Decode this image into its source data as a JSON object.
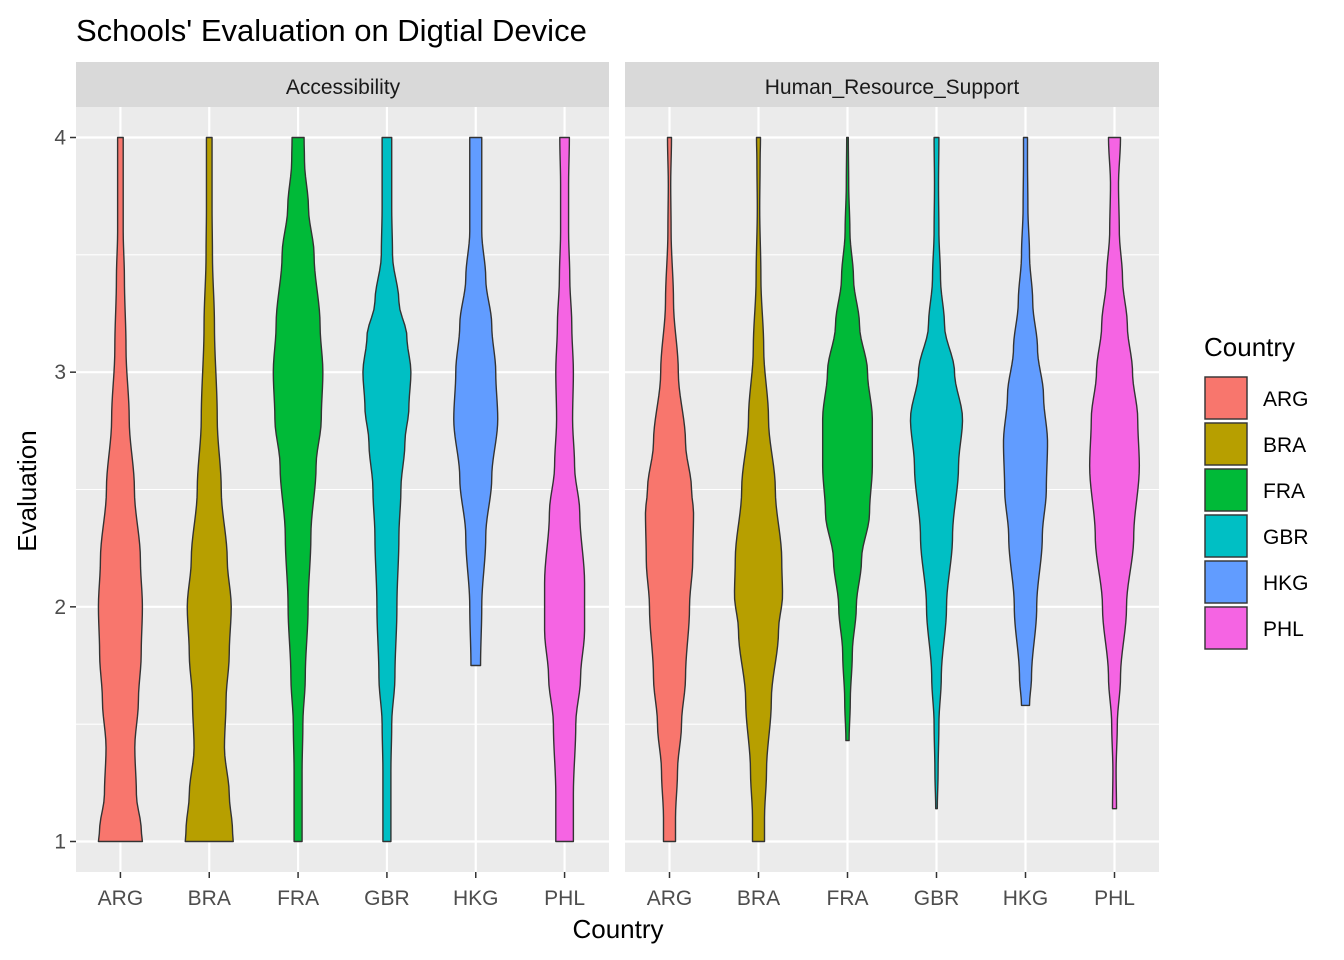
{
  "chart_data": {
    "type": "violin",
    "title": "Schools' Evaluation on Digtial Device",
    "xlabel": "Country",
    "ylabel": "Evaluation",
    "ylim": [
      0.87,
      4.13
    ],
    "y_ticks": [
      1,
      2,
      3,
      4
    ],
    "categories": [
      "ARG",
      "BRA",
      "FRA",
      "GBR",
      "HKG",
      "PHL"
    ],
    "colors": {
      "ARG": "#F8766D",
      "BRA": "#B79F00",
      "FRA": "#00BA38",
      "GBR": "#00BFC4",
      "HKG": "#619CFF",
      "PHL": "#F564E3"
    },
    "outline_color": "#333333",
    "grid": true,
    "legend": {
      "title": "Country",
      "position": "right",
      "entries": [
        "ARG",
        "BRA",
        "FRA",
        "GBR",
        "HKG",
        "PHL"
      ]
    },
    "facets": [
      {
        "label": "Accessibility",
        "series": [
          {
            "name": "ARG",
            "y_range": [
              1,
              4
            ],
            "profile": [
              [
                1.0,
                0.55
              ],
              [
                1.05,
                0.52
              ],
              [
                1.2,
                0.4
              ],
              [
                1.4,
                0.36
              ],
              [
                1.6,
                0.45
              ],
              [
                1.8,
                0.52
              ],
              [
                2.0,
                0.55
              ],
              [
                2.2,
                0.5
              ],
              [
                2.5,
                0.35
              ],
              [
                2.8,
                0.22
              ],
              [
                3.1,
                0.14
              ],
              [
                3.4,
                0.1
              ],
              [
                3.6,
                0.07
              ],
              [
                3.7,
                0.07
              ],
              [
                4.0,
                0.07
              ]
            ]
          },
          {
            "name": "BRA",
            "y_range": [
              1,
              4
            ],
            "profile": [
              [
                1.0,
                0.6
              ],
              [
                1.05,
                0.58
              ],
              [
                1.2,
                0.5
              ],
              [
                1.4,
                0.38
              ],
              [
                1.6,
                0.42
              ],
              [
                1.8,
                0.5
              ],
              [
                2.0,
                0.55
              ],
              [
                2.2,
                0.45
              ],
              [
                2.5,
                0.3
              ],
              [
                2.8,
                0.2
              ],
              [
                3.2,
                0.13
              ],
              [
                3.5,
                0.08
              ],
              [
                3.7,
                0.07
              ],
              [
                4.0,
                0.07
              ]
            ]
          },
          {
            "name": "FRA",
            "y_range": [
              1,
              4
            ],
            "profile": [
              [
                1.0,
                0.1
              ],
              [
                1.3,
                0.1
              ],
              [
                1.5,
                0.12
              ],
              [
                1.7,
                0.18
              ],
              [
                2.0,
                0.25
              ],
              [
                2.3,
                0.32
              ],
              [
                2.6,
                0.45
              ],
              [
                2.8,
                0.58
              ],
              [
                3.0,
                0.62
              ],
              [
                3.2,
                0.55
              ],
              [
                3.5,
                0.4
              ],
              [
                3.7,
                0.26
              ],
              [
                3.9,
                0.16
              ],
              [
                4.0,
                0.15
              ]
            ]
          },
          {
            "name": "GBR",
            "y_range": [
              1,
              4
            ],
            "profile": [
              [
                1.0,
                0.1
              ],
              [
                1.3,
                0.1
              ],
              [
                1.5,
                0.12
              ],
              [
                1.7,
                0.2
              ],
              [
                2.0,
                0.25
              ],
              [
                2.3,
                0.3
              ],
              [
                2.5,
                0.35
              ],
              [
                2.7,
                0.45
              ],
              [
                2.85,
                0.55
              ],
              [
                3.0,
                0.6
              ],
              [
                3.15,
                0.5
              ],
              [
                3.3,
                0.3
              ],
              [
                3.5,
                0.14
              ],
              [
                3.7,
                0.12
              ],
              [
                4.0,
                0.12
              ]
            ]
          },
          {
            "name": "HKG",
            "y_range": [
              1.75,
              4
            ],
            "profile": [
              [
                1.75,
                0.12
              ],
              [
                2.0,
                0.15
              ],
              [
                2.3,
                0.25
              ],
              [
                2.55,
                0.4
              ],
              [
                2.8,
                0.55
              ],
              [
                3.0,
                0.5
              ],
              [
                3.2,
                0.4
              ],
              [
                3.4,
                0.25
              ],
              [
                3.6,
                0.15
              ],
              [
                3.8,
                0.15
              ],
              [
                4.0,
                0.15
              ]
            ]
          },
          {
            "name": "PHL",
            "y_range": [
              1,
              4
            ],
            "profile": [
              [
                1.0,
                0.22
              ],
              [
                1.2,
                0.22
              ],
              [
                1.5,
                0.28
              ],
              [
                1.7,
                0.4
              ],
              [
                1.9,
                0.5
              ],
              [
                2.1,
                0.5
              ],
              [
                2.4,
                0.38
              ],
              [
                2.6,
                0.25
              ],
              [
                2.8,
                0.2
              ],
              [
                3.0,
                0.22
              ],
              [
                3.2,
                0.18
              ],
              [
                3.4,
                0.13
              ],
              [
                3.6,
                0.1
              ],
              [
                3.8,
                0.1
              ],
              [
                4.0,
                0.12
              ]
            ]
          }
        ]
      },
      {
        "label": "Human_Resource_Support",
        "series": [
          {
            "name": "ARG",
            "y_range": [
              1,
              4
            ],
            "profile": [
              [
                1.0,
                0.15
              ],
              [
                1.1,
                0.15
              ],
              [
                1.3,
                0.2
              ],
              [
                1.5,
                0.3
              ],
              [
                1.7,
                0.4
              ],
              [
                2.0,
                0.5
              ],
              [
                2.2,
                0.58
              ],
              [
                2.4,
                0.6
              ],
              [
                2.5,
                0.55
              ],
              [
                2.7,
                0.4
              ],
              [
                3.0,
                0.22
              ],
              [
                3.3,
                0.1
              ],
              [
                3.6,
                0.04
              ],
              [
                3.8,
                0.03
              ],
              [
                4.0,
                0.05
              ]
            ]
          },
          {
            "name": "BRA",
            "y_range": [
              1,
              4
            ],
            "profile": [
              [
                1.0,
                0.15
              ],
              [
                1.1,
                0.15
              ],
              [
                1.3,
                0.2
              ],
              [
                1.6,
                0.32
              ],
              [
                1.9,
                0.5
              ],
              [
                2.05,
                0.6
              ],
              [
                2.2,
                0.58
              ],
              [
                2.5,
                0.42
              ],
              [
                2.8,
                0.25
              ],
              [
                3.1,
                0.13
              ],
              [
                3.4,
                0.06
              ],
              [
                3.7,
                0.03
              ],
              [
                3.9,
                0.04
              ],
              [
                4.0,
                0.05
              ]
            ]
          },
          {
            "name": "FRA",
            "y_range": [
              1.43,
              4
            ],
            "profile": [
              [
                1.43,
                0.04
              ],
              [
                1.6,
                0.07
              ],
              [
                1.8,
                0.12
              ],
              [
                2.0,
                0.22
              ],
              [
                2.2,
                0.35
              ],
              [
                2.4,
                0.55
              ],
              [
                2.6,
                0.62
              ],
              [
                2.8,
                0.62
              ],
              [
                3.0,
                0.5
              ],
              [
                3.2,
                0.3
              ],
              [
                3.4,
                0.15
              ],
              [
                3.6,
                0.06
              ],
              [
                3.8,
                0.03
              ],
              [
                4.0,
                0.02
              ]
            ]
          },
          {
            "name": "GBR",
            "y_range": [
              1.14,
              4
            ],
            "profile": [
              [
                1.14,
                0.02
              ],
              [
                1.3,
                0.04
              ],
              [
                1.5,
                0.06
              ],
              [
                1.7,
                0.12
              ],
              [
                2.0,
                0.25
              ],
              [
                2.3,
                0.4
              ],
              [
                2.6,
                0.55
              ],
              [
                2.8,
                0.65
              ],
              [
                3.0,
                0.45
              ],
              [
                3.2,
                0.2
              ],
              [
                3.4,
                0.1
              ],
              [
                3.6,
                0.06
              ],
              [
                3.8,
                0.05
              ],
              [
                4.0,
                0.06
              ]
            ]
          },
          {
            "name": "HKG",
            "y_range": [
              1.58,
              4
            ],
            "profile": [
              [
                1.58,
                0.1
              ],
              [
                1.7,
                0.15
              ],
              [
                2.0,
                0.28
              ],
              [
                2.3,
                0.42
              ],
              [
                2.5,
                0.52
              ],
              [
                2.7,
                0.55
              ],
              [
                2.9,
                0.45
              ],
              [
                3.1,
                0.3
              ],
              [
                3.3,
                0.18
              ],
              [
                3.5,
                0.1
              ],
              [
                3.7,
                0.06
              ],
              [
                3.9,
                0.05
              ],
              [
                4.0,
                0.05
              ]
            ]
          },
          {
            "name": "PHL",
            "y_range": [
              1.14,
              4
            ],
            "profile": [
              [
                1.14,
                0.05
              ],
              [
                1.3,
                0.04
              ],
              [
                1.5,
                0.07
              ],
              [
                1.7,
                0.15
              ],
              [
                2.0,
                0.3
              ],
              [
                2.3,
                0.48
              ],
              [
                2.6,
                0.62
              ],
              [
                2.8,
                0.58
              ],
              [
                3.0,
                0.45
              ],
              [
                3.2,
                0.32
              ],
              [
                3.4,
                0.2
              ],
              [
                3.6,
                0.12
              ],
              [
                3.8,
                0.1
              ],
              [
                4.0,
                0.15
              ]
            ]
          }
        ]
      }
    ]
  }
}
